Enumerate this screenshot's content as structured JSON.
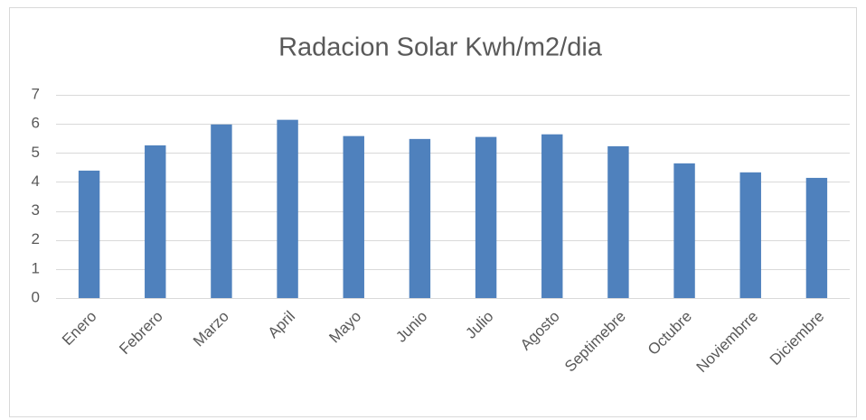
{
  "chart_data": {
    "type": "bar",
    "title": "Radacion Solar Kwh/m2/dia",
    "categories": [
      "Enero",
      "Febrero",
      "Marzo",
      "April",
      "Mayo",
      "Junio",
      "Julio",
      "Agosto",
      "Septimebre",
      "Octubre",
      "Noviembrre",
      "Diciembre"
    ],
    "values": [
      4.39,
      5.26,
      5.98,
      6.14,
      5.58,
      5.48,
      5.55,
      5.64,
      5.23,
      4.64,
      4.33,
      4.14
    ],
    "color": "#4f81bd",
    "ylim": [
      0,
      7
    ],
    "yticks": [
      0,
      1,
      2,
      3,
      4,
      5,
      6,
      7
    ],
    "grid": true
  }
}
